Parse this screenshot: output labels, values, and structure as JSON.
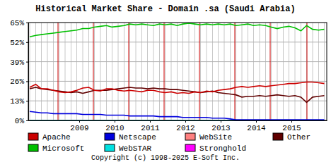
{
  "chart_data": {
    "type": "line",
    "title": "Historical Market Share - Domain .sa (Saudi Arabia)",
    "annotations": [
      "Copyright (c) 1998-2025 E-Soft Inc."
    ],
    "x": [
      2007.6,
      2007.77,
      2007.93,
      2008.1,
      2008.27,
      2008.43,
      2008.6,
      2008.77,
      2008.93,
      2009.1,
      2009.27,
      2009.43,
      2009.6,
      2009.77,
      2009.93,
      2010.1,
      2010.27,
      2010.43,
      2010.6,
      2010.77,
      2010.93,
      2011.1,
      2011.27,
      2011.43,
      2011.6,
      2011.77,
      2011.93,
      2012.1,
      2012.27,
      2012.43,
      2012.6,
      2012.77,
      2012.93,
      2013.1,
      2013.27,
      2013.43,
      2013.6,
      2013.77,
      2013.93,
      2014.1,
      2014.27,
      2014.43,
      2014.6,
      2014.77,
      2014.93,
      2015.1,
      2015.27,
      2015.43,
      2015.6,
      2015.77,
      2015.93
    ],
    "series": [
      {
        "name": "Apache",
        "color": "#cc0000",
        "values": [
          22,
          24,
          21,
          21,
          20,
          19,
          18.5,
          19,
          20,
          21.5,
          22,
          20,
          19.5,
          21,
          21,
          20,
          19.5,
          20,
          19.5,
          19,
          20,
          20,
          19,
          18.5,
          19,
          18,
          18.5,
          18,
          19,
          18.5,
          19.5,
          19,
          20,
          20.5,
          21,
          22,
          22.5,
          22,
          22.5,
          23,
          22.5,
          23,
          23.5,
          24,
          24.5,
          24.5,
          25,
          25.5,
          25.5,
          25,
          24.5
        ]
      },
      {
        "name": "Microsoft",
        "color": "#00c000",
        "values": [
          55.5,
          56.5,
          57,
          57.5,
          58,
          58.5,
          59,
          59.5,
          60,
          61,
          61,
          62,
          62.5,
          63,
          62,
          62.5,
          63,
          64,
          63.5,
          64,
          63.5,
          63,
          64,
          63.5,
          64,
          63,
          64,
          64.5,
          64,
          63.5,
          64,
          63.5,
          64,
          63.5,
          64,
          63,
          63.5,
          64,
          63,
          63.5,
          63,
          62,
          61,
          62,
          62.5,
          61.5,
          59.5,
          63,
          60.5,
          60,
          60.5
        ]
      },
      {
        "name": "Netscape",
        "color": "#0000dd",
        "values": [
          6,
          5.5,
          5,
          5,
          4.5,
          4.5,
          4.5,
          4.5,
          4.5,
          4,
          4,
          4,
          4,
          3.5,
          3.5,
          3.5,
          3.5,
          3,
          3,
          3,
          3,
          3,
          2.5,
          2.5,
          2.5,
          2.5,
          2,
          2,
          2,
          2,
          2,
          1.5,
          1.5,
          1.5,
          1,
          0.5,
          0.5,
          0.5,
          0.5,
          0.5,
          0.5,
          0.5,
          0.5,
          0.5,
          0.5,
          0.5,
          0.5,
          0.5,
          0.5,
          0.5,
          0.5
        ]
      },
      {
        "name": "WebSTAR",
        "color": "#00e0e0",
        "values": [
          0,
          0,
          0,
          0,
          0,
          0,
          0,
          0,
          0,
          0,
          0,
          0,
          0,
          0,
          0,
          0,
          0,
          0,
          0,
          0,
          0,
          0,
          0,
          0,
          0,
          0,
          0,
          0,
          0,
          0,
          0,
          0,
          0,
          0,
          0,
          0,
          0,
          0,
          0,
          0,
          0,
          0,
          0,
          0,
          0,
          0,
          0,
          0,
          0,
          0,
          0
        ]
      },
      {
        "name": "WebSite",
        "color": "#ff8080",
        "values": [
          0,
          0,
          0,
          0,
          0,
          0,
          0,
          0,
          0,
          0,
          0,
          0,
          0,
          0,
          0,
          0,
          0,
          0,
          0,
          0,
          0,
          0,
          0,
          0,
          0,
          0,
          0,
          0,
          0,
          0,
          0,
          0,
          0,
          0,
          0,
          0,
          0,
          0,
          0,
          0,
          0,
          0,
          0,
          0,
          0,
          0,
          0,
          0,
          0,
          0,
          0
        ]
      },
      {
        "name": "Stronghold",
        "color": "#ff00ff",
        "values": [
          0,
          0,
          0,
          0,
          0,
          0,
          0,
          0,
          0,
          0,
          0,
          0,
          0,
          0,
          0,
          0,
          0,
          0,
          0,
          0,
          0,
          0,
          0,
          0,
          0,
          0,
          0,
          0,
          0,
          0,
          0,
          0,
          0,
          0,
          0,
          0,
          0,
          0,
          0,
          0,
          0,
          0,
          0,
          0,
          0,
          0,
          0,
          0,
          0,
          0,
          0
        ]
      },
      {
        "name": "Other",
        "color": "#600000",
        "values": [
          21,
          22,
          21,
          20.5,
          20,
          19.5,
          19,
          18.5,
          19,
          18,
          19,
          20,
          20,
          20,
          20.5,
          21,
          21.5,
          22,
          21.5,
          21.5,
          21,
          21.5,
          21,
          21,
          20.5,
          20.5,
          20,
          19.5,
          19,
          18.5,
          19,
          19.5,
          18.5,
          18,
          17.5,
          17,
          15.5,
          16,
          16,
          16.5,
          16,
          16.5,
          17,
          16.5,
          16,
          16.5,
          15.5,
          12,
          15.5,
          16,
          16.5
        ]
      }
    ],
    "reference_lines": [
      2008.4,
      2009.4,
      2010.4,
      2011.4,
      2012.4,
      2013.4,
      2014.4,
      2015.44
    ],
    "xlim": [
      2007.56,
      2016
    ],
    "xticks": [
      2009,
      2010,
      2011,
      2012,
      2013,
      2014,
      2015
    ],
    "ylim": [
      0,
      65
    ],
    "yticks": [
      {
        "value": 0,
        "label": "0%"
      },
      {
        "value": 13,
        "label": "13%"
      },
      {
        "value": 26,
        "label": "26%"
      },
      {
        "value": 39,
        "label": "39%"
      },
      {
        "value": 52,
        "label": "52%"
      },
      {
        "value": 65,
        "label": "65%"
      }
    ],
    "grid": true,
    "legend": "bottom"
  }
}
